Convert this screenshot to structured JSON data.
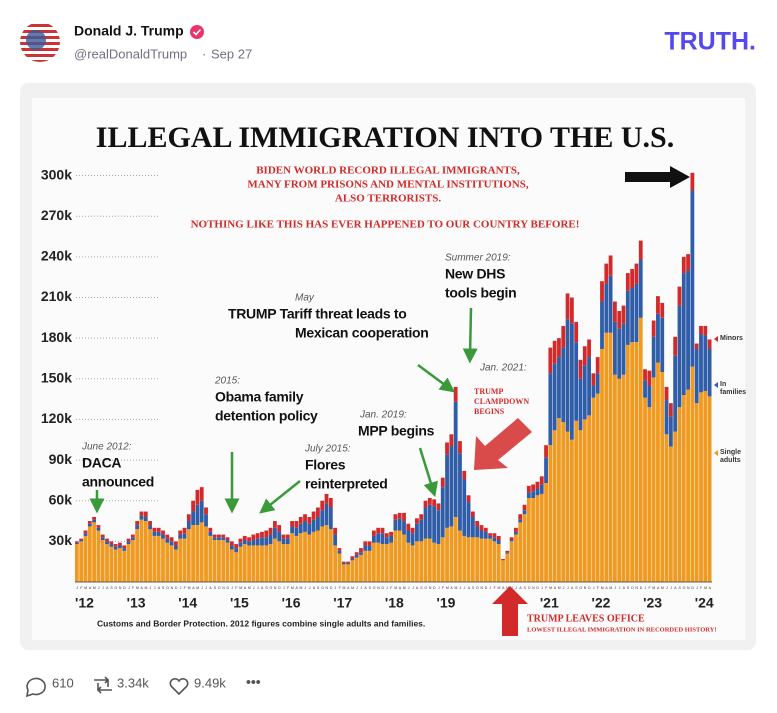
{
  "post": {
    "name": "Donald J. Trump",
    "handle": "@realDonaldTrump",
    "date": "Sep 27",
    "logo": "TRUTH.",
    "replies": "610",
    "reposts": "3.34k",
    "likes": "9.49k"
  },
  "chart_data": {
    "type": "stacked_bar",
    "title": "ILLEGAL IMMIGRATION INTO THE U.S.",
    "subtitle": [
      "BIDEN WORLD RECORD ILLEGAL IMMIGRANTS,",
      "MANY FROM PRISONS AND MENTAL INSTITUTIONS,",
      "ALSO TERRORISTS."
    ],
    "headline": "NOTHING LIKE THIS HAS EVER HAPPENED TO OUR COUNTRY BEFORE!",
    "source": "Customs and Border Protection. 2012 figures combine single adults and families.",
    "clampdown": [
      "TRUMP",
      "CLAMPDOWN",
      "BEGINS"
    ],
    "leaves_office": [
      "TRUMP LEAVES OFFICE",
      "LOWEST ILLEGAL IMMIGRATION IN RECORDED HISTORY!"
    ],
    "annotations": [
      {
        "date": "June 2012:",
        "lines": [
          "DACA",
          "announced"
        ]
      },
      {
        "date": "2015:",
        "lines": [
          "Obama family",
          "detention policy"
        ]
      },
      {
        "date": "July 2015:",
        "lines": [
          "Flores",
          "reinterpreted"
        ]
      },
      {
        "date": "May",
        "lines": [
          "TRUMP Tariff threat leads to",
          "Mexican cooperation"
        ]
      },
      {
        "date": "Jan. 2019:",
        "lines": [
          "MPP begins"
        ]
      },
      {
        "date": "Summer 2019:",
        "lines": [
          "New DHS",
          "tools begin"
        ]
      },
      {
        "date": "Jan. 2021:"
      }
    ],
    "ylim": [
      0,
      310000
    ],
    "yticks": [
      {
        "value": 30000,
        "label": "30k"
      },
      {
        "value": 60000,
        "label": "60k"
      },
      {
        "value": 90000,
        "label": "90k"
      },
      {
        "value": 120000,
        "label": "120k"
      },
      {
        "value": 150000,
        "label": "150k"
      },
      {
        "value": 180000,
        "label": "180k"
      },
      {
        "value": 210000,
        "label": "210k"
      },
      {
        "value": 240000,
        "label": "240k"
      },
      {
        "value": 270000,
        "label": "270k"
      },
      {
        "value": 300000,
        "label": "300k"
      }
    ],
    "xticks": [
      {
        "value": 0,
        "label": "'12"
      },
      {
        "value": 12,
        "label": "'13"
      },
      {
        "value": 24,
        "label": "'14"
      },
      {
        "value": 36,
        "label": "'15"
      },
      {
        "value": 48,
        "label": "'16"
      },
      {
        "value": 60,
        "label": "'17"
      },
      {
        "value": 72,
        "label": "'18"
      },
      {
        "value": 84,
        "label": "'19"
      },
      {
        "value": 108,
        "label": "'21"
      },
      {
        "value": 120,
        "label": "'22"
      },
      {
        "value": 132,
        "label": "'23"
      },
      {
        "value": 144,
        "label": "'24"
      }
    ],
    "categories": [
      "J",
      "F",
      "M",
      "A",
      "M",
      "J",
      "J",
      "A",
      "S",
      "O",
      "N",
      "D",
      "J",
      "F",
      "M",
      "A",
      "M",
      "J",
      "J",
      "A",
      "S",
      "O",
      "N",
      "D",
      "J",
      "F",
      "M",
      "A",
      "M",
      "J",
      "J",
      "A",
      "S",
      "O",
      "N",
      "D",
      "J",
      "F",
      "M",
      "A",
      "M",
      "J",
      "J",
      "A",
      "S",
      "O",
      "N",
      "D",
      "J",
      "F",
      "M",
      "A",
      "M",
      "J",
      "J",
      "A",
      "S",
      "O",
      "N",
      "D",
      "J",
      "F",
      "M",
      "A",
      "M",
      "J",
      "J",
      "A",
      "S",
      "O",
      "N",
      "D",
      "J",
      "F",
      "M",
      "A",
      "M",
      "J",
      "J",
      "A",
      "S",
      "O",
      "N",
      "D",
      "J",
      "F",
      "M",
      "A",
      "M",
      "J",
      "J",
      "A",
      "S",
      "O",
      "N",
      "D",
      "J",
      "F",
      "M",
      "A",
      "M",
      "J",
      "J",
      "A",
      "S",
      "O",
      "N",
      "D",
      "J",
      "F",
      "M",
      "A",
      "M",
      "J",
      "J",
      "A",
      "S",
      "O",
      "N",
      "D",
      "J",
      "F",
      "M",
      "A",
      "M",
      "J",
      "J",
      "A",
      "S",
      "O",
      "N",
      "D",
      "J",
      "F",
      "M",
      "A",
      "M",
      "J",
      "J",
      "A",
      "S",
      "O",
      "N",
      "D",
      "J",
      "F",
      "M",
      "A"
    ],
    "series": [
      {
        "name": "Minors",
        "color": "#d22a2a",
        "values": [
          1000,
          1000,
          2000,
          2000,
          2000,
          2000,
          2000,
          2000,
          2000,
          2000,
          2000,
          2000,
          2000,
          2000,
          3000,
          3000,
          4000,
          3000,
          3000,
          3000,
          3000,
          3000,
          3000,
          3000,
          3000,
          4000,
          5000,
          8000,
          11000,
          10000,
          5000,
          3000,
          2000,
          2000,
          2000,
          2000,
          3000,
          3000,
          3000,
          3000,
          3000,
          4000,
          4000,
          4000,
          5000,
          5000,
          5000,
          5000,
          3000,
          3000,
          4000,
          5000,
          5000,
          5000,
          5000,
          6000,
          7000,
          7000,
          7000,
          7000,
          5000,
          2000,
          1000,
          1000,
          2000,
          2000,
          3000,
          3000,
          3000,
          4000,
          4000,
          4000,
          3000,
          3000,
          4000,
          4000,
          6000,
          5000,
          4000,
          4000,
          4000,
          5000,
          5000,
          5000,
          5000,
          7000,
          9000,
          9000,
          11000,
          9000,
          6000,
          5000,
          4000,
          4000,
          4000,
          3000,
          2000,
          3000,
          3000,
          1000,
          1000,
          2000,
          3000,
          4000,
          4000,
          5000,
          5000,
          5000,
          6000,
          9000,
          19000,
          17000,
          14000,
          16000,
          19000,
          19000,
          15000,
          14000,
          14000,
          13000,
          9000,
          12000,
          15000,
          15000,
          15000,
          15000,
          13000,
          13000,
          13000,
          14000,
          15000,
          14000,
          8000,
          11000,
          12000,
          13000,
          11000,
          10000,
          10000,
          14000,
          14000,
          12000,
          12000,
          13000,
          4000,
          6000,
          7000,
          7000
        ]
      },
      {
        "name": "In families",
        "color": "#2f5da8",
        "values": [
          1000,
          1000,
          2000,
          2000,
          2000,
          2000,
          2000,
          2000,
          2000,
          2000,
          2000,
          2000,
          2000,
          2000,
          3000,
          3000,
          3000,
          3000,
          3000,
          3000,
          3000,
          3000,
          3000,
          3000,
          3000,
          4000,
          6000,
          10000,
          15000,
          16000,
          9000,
          3000,
          2000,
          2000,
          2000,
          2000,
          3000,
          3000,
          3000,
          3000,
          3000,
          4000,
          5000,
          6000,
          6000,
          7000,
          8000,
          7000,
          4000,
          4000,
          5000,
          6000,
          7000,
          8000,
          8000,
          9000,
          10000,
          12000,
          16000,
          16000,
          8000,
          2000,
          1000,
          1000,
          1000,
          2000,
          2000,
          4000,
          4000,
          5000,
          7000,
          8000,
          5000,
          5000,
          8000,
          9000,
          10000,
          9000,
          9000,
          13000,
          16000,
          23000,
          25000,
          27000,
          25000,
          37000,
          54000,
          59000,
          85000,
          57000,
          42000,
          26000,
          15000,
          8000,
          6000,
          5000,
          2000,
          3000,
          3000,
          0,
          1000,
          1000,
          2000,
          2000,
          3000,
          4000,
          5000,
          5000,
          7000,
          19000,
          53000,
          49000,
          45000,
          55000,
          83000,
          86000,
          58000,
          38000,
          40000,
          43000,
          9000,
          15000,
          35000,
          36000,
          42000,
          39000,
          37000,
          38000,
          40000,
          40000,
          43000,
          43000,
          13000,
          16000,
          30000,
          36000,
          40000,
          25000,
          22000,
          56000,
          75000,
          90000,
          88000,
          130000,
          40000,
          43000,
          41000,
          35000
        ]
      },
      {
        "name": "Single adults",
        "color": "#f09a22",
        "values": [
          28000,
          30000,
          34000,
          41000,
          44000,
          38000,
          31000,
          28000,
          26000,
          24000,
          25000,
          23000,
          28000,
          31000,
          39000,
          46000,
          45000,
          39000,
          34000,
          34000,
          32000,
          29000,
          27000,
          24000,
          32000,
          32000,
          39000,
          42000,
          42000,
          44000,
          41000,
          34000,
          31000,
          31000,
          31000,
          29000,
          24000,
          22000,
          26000,
          28000,
          27000,
          27000,
          27000,
          27000,
          27000,
          28000,
          32000,
          30000,
          28000,
          28000,
          36000,
          34000,
          36000,
          37000,
          35000,
          37000,
          38000,
          41000,
          42000,
          39000,
          27000,
          21000,
          13000,
          13000,
          16000,
          18000,
          20000,
          23000,
          23000,
          29000,
          29000,
          28000,
          28000,
          29000,
          38000,
          38000,
          35000,
          29000,
          27000,
          30000,
          30000,
          32000,
          32000,
          29000,
          28000,
          33000,
          40000,
          41000,
          48000,
          38000,
          34000,
          33000,
          33000,
          33000,
          32000,
          32000,
          32000,
          30000,
          28000,
          16000,
          21000,
          30000,
          35000,
          44000,
          50000,
          62000,
          62000,
          64000,
          65000,
          73000,
          101000,
          112000,
          121000,
          118000,
          111000,
          105000,
          119000,
          112000,
          120000,
          123000,
          136000,
          139000,
          172000,
          184000,
          184000,
          153000,
          150000,
          153000,
          175000,
          177000,
          177000,
          195000,
          136000,
          129000,
          151000,
          162000,
          155000,
          109000,
          100000,
          111000,
          129000,
          138000,
          142000,
          159000,
          132000,
          140000,
          141000,
          137000
        ]
      }
    ]
  }
}
